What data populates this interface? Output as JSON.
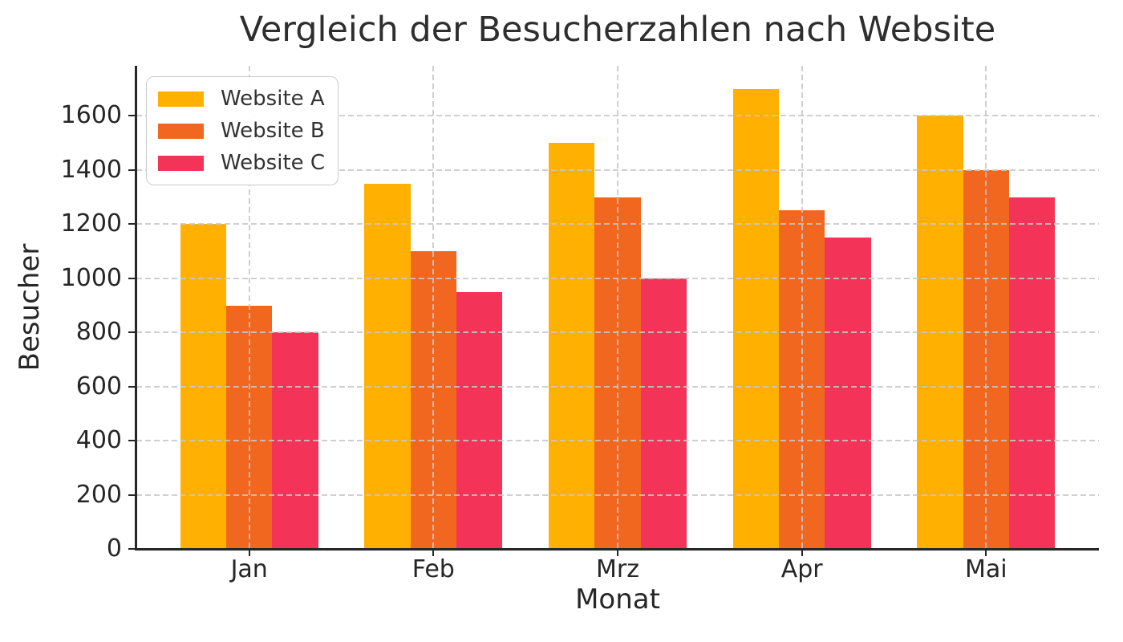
{
  "chart_data": {
    "type": "bar",
    "title": "Vergleich der Besucherzahlen nach Website",
    "xlabel": "Monat",
    "ylabel": "Besucher",
    "categories": [
      "Jan",
      "Feb",
      "Mrz",
      "Apr",
      "Mai"
    ],
    "series": [
      {
        "name": "Website A",
        "color": "#FFB000",
        "values": [
          1200,
          1350,
          1500,
          1700,
          1600
        ]
      },
      {
        "name": "Website B",
        "color": "#F2671F",
        "values": [
          900,
          1100,
          1300,
          1250,
          1400
        ]
      },
      {
        "name": "Website C",
        "color": "#F33358",
        "values": [
          800,
          950,
          1000,
          1150,
          1300
        ]
      }
    ],
    "yticks": [
      0,
      200,
      400,
      600,
      800,
      1000,
      1200,
      1400,
      1600
    ],
    "ylim": [
      0,
      1785
    ],
    "grid": "dashed-both-over-bars",
    "legend_position": "upper-left",
    "colors": {
      "grid": "#cccccc",
      "axis": "#262626",
      "text": "#262626",
      "legend_border": "#cccccc"
    }
  }
}
